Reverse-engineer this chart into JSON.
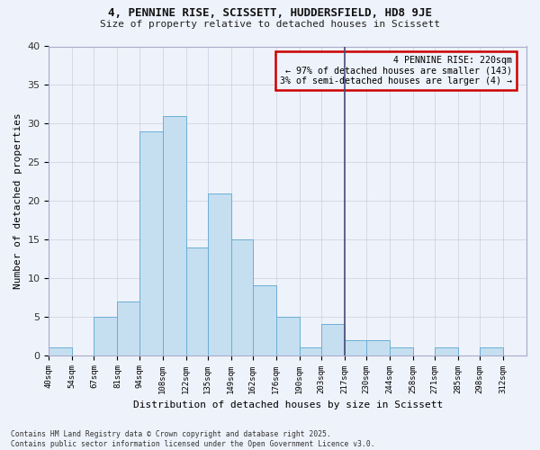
{
  "title1": "4, PENNINE RISE, SCISSETT, HUDDERSFIELD, HD8 9JE",
  "title2": "Size of property relative to detached houses in Scissett",
  "xlabel": "Distribution of detached houses by size in Scissett",
  "ylabel": "Number of detached properties",
  "bin_labels": [
    "40sqm",
    "54sqm",
    "67sqm",
    "81sqm",
    "94sqm",
    "108sqm",
    "122sqm",
    "135sqm",
    "149sqm",
    "162sqm",
    "176sqm",
    "190sqm",
    "203sqm",
    "217sqm",
    "230sqm",
    "244sqm",
    "258sqm",
    "271sqm",
    "285sqm",
    "298sqm",
    "312sqm"
  ],
  "bin_edges": [
    40,
    54,
    67,
    81,
    94,
    108,
    122,
    135,
    149,
    162,
    176,
    190,
    203,
    217,
    230,
    244,
    258,
    271,
    285,
    298,
    312,
    326
  ],
  "bar_heights": [
    1,
    0,
    5,
    7,
    29,
    31,
    14,
    21,
    15,
    9,
    5,
    1,
    4,
    2,
    2,
    1,
    0,
    1,
    0,
    1,
    0
  ],
  "bar_color": "#c5dff0",
  "bar_edge_color": "#6aaed6",
  "bg_color": "#eef2fa",
  "grid_color": "#c8cfe0",
  "property_line_x": 217,
  "annotation_text": "4 PENNINE RISE: 220sqm\n← 97% of detached houses are smaller (143)\n3% of semi-detached houses are larger (4) →",
  "annotation_box_edge_color": "#cc0000",
  "ylim": [
    0,
    40
  ],
  "yticks": [
    0,
    5,
    10,
    15,
    20,
    25,
    30,
    35,
    40
  ],
  "footer1": "Contains HM Land Registry data © Crown copyright and database right 2025.",
  "footer2": "Contains public sector information licensed under the Open Government Licence v3.0."
}
